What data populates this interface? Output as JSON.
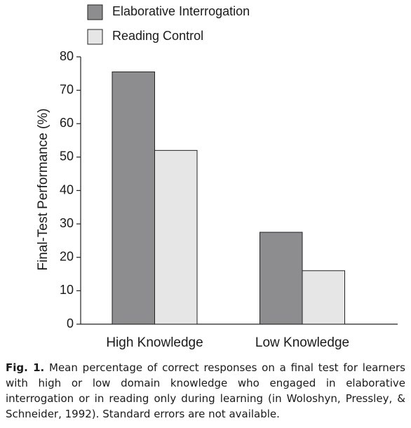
{
  "chart_data": {
    "type": "bar",
    "ylabel": "Final-Test Performance (%)",
    "categories": [
      "High Knowledge",
      "Low Knowledge"
    ],
    "series": [
      {
        "name": "Elaborative Interrogation",
        "color": "#8d8d90",
        "values": [
          75.5,
          27.5
        ]
      },
      {
        "name": "Reading Control",
        "color": "#e6e6e7",
        "values": [
          52,
          16
        ]
      }
    ],
    "ylim": [
      0,
      80
    ],
    "yticks": [
      0,
      10,
      20,
      30,
      40,
      50,
      60,
      70,
      80
    ],
    "legend": "top",
    "grid": false
  },
  "caption": {
    "label": "Fig. 1.",
    "text": "Mean percentage of correct responses on a final test for learners with high or low domain knowledge who engaged in elaborative interrogation or in reading only during learning (in Woloshyn, Pressley, & Schneider, 1992). Standard errors are not available."
  }
}
